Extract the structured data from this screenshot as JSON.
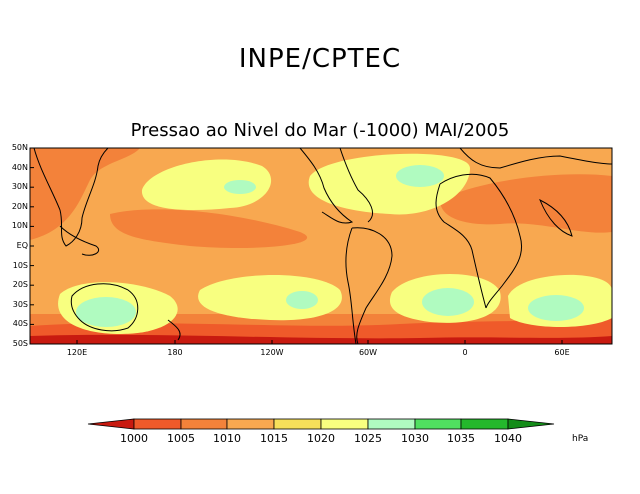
{
  "header": {
    "title": "INPE/CPTEC",
    "subtitle": "Pressao ao Nivel do Mar (-1000) MAI/2005"
  },
  "map": {
    "lat_labels": [
      "50N",
      "40N",
      "30N",
      "20N",
      "10N",
      "EQ",
      "10S",
      "20S",
      "30S",
      "40S",
      "50S"
    ],
    "lon_labels": [
      "120E",
      "180",
      "120W",
      "60W",
      "0",
      "60E"
    ]
  },
  "colorbar": {
    "levels": [
      "1000",
      "1005",
      "1010",
      "1015",
      "1020",
      "1025",
      "1030",
      "1035",
      "1040"
    ],
    "colors": [
      "#c81a10",
      "#ef5a2a",
      "#f3823a",
      "#f8a850",
      "#f7e05a",
      "#f8ff80",
      "#b0fbc0",
      "#50e060",
      "#24b82c",
      "#138c18",
      "#0c5a10"
    ],
    "unit": "hPa"
  }
}
